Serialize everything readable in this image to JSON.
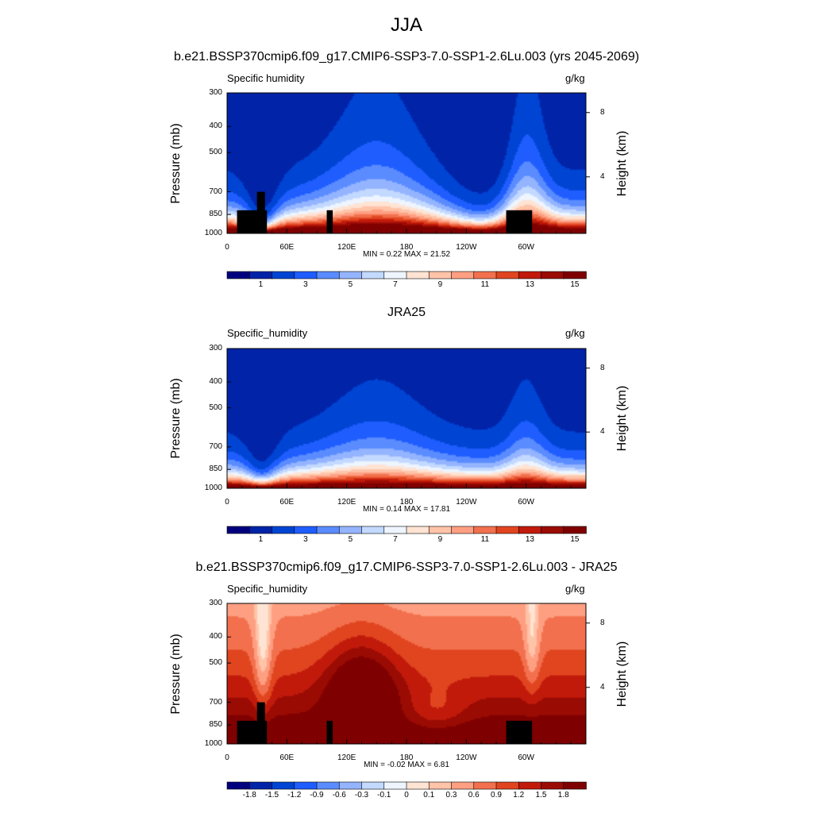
{
  "figure": {
    "title": "JJA",
    "panels": [
      {
        "title": "b.e21.BSSP370cmip6.f09_g17.CMIP6-SSP3-7.0-SSP1-2.6Lu.003 (yrs 2045-2069)",
        "variable_label": "Specific humidity",
        "units": "g/kg",
        "min_label": "MIN =",
        "min_value": "0.22",
        "max_label": "MAX =",
        "max_value": "21.52",
        "kind": "absolute",
        "show_topography": true
      },
      {
        "title": "JRA25",
        "variable_label": "Specific_humidity",
        "units": "g/kg",
        "min_label": "MIN =",
        "min_value": "0.14",
        "max_label": "MAX =",
        "max_value": "17.81",
        "kind": "absolute",
        "show_topography": false
      },
      {
        "title": "b.e21.BSSP370cmip6.f09_g17.CMIP6-SSP3-7.0-SSP1-2.6Lu.003 - JRA25",
        "variable_label": "Specific_humidity",
        "units": "g/kg",
        "min_label": "MIN =",
        "min_value": "-0.02",
        "max_label": "MAX =",
        "max_value": "6.81",
        "kind": "difference",
        "show_topography": true
      }
    ]
  },
  "chart_data": {
    "type": "heatmap",
    "x_axis": {
      "ticks": [
        "0",
        "60E",
        "120E",
        "180",
        "120W",
        "60W"
      ],
      "tick_lon": [
        0,
        60,
        120,
        180,
        240,
        300
      ],
      "range": [
        0,
        360
      ]
    },
    "y_axis": {
      "label": "Pressure (mb)",
      "ticks": [
        300,
        400,
        500,
        700,
        850,
        1000
      ],
      "range": [
        1000,
        300
      ],
      "scale": "log"
    },
    "y_axis_right": {
      "label": "Height (km)",
      "ticks": [
        8,
        4
      ]
    },
    "colorbar_absolute": {
      "labels": [
        "1",
        "3",
        "5",
        "7",
        "9",
        "11",
        "13",
        "15"
      ],
      "colors": [
        "#00007f",
        "#0023a8",
        "#0044d3",
        "#1f5dff",
        "#5a8cff",
        "#94b4ff",
        "#c3d9ff",
        "#eef5ff",
        "#ffe3d3",
        "#ffc3a8",
        "#ff9f82",
        "#f2704d",
        "#e0451f",
        "#c11a0b",
        "#9a0b04",
        "#7f0000"
      ]
    },
    "colorbar_difference": {
      "labels": [
        "-1.8",
        "-1.5",
        "-1.2",
        "-0.9",
        "-0.6",
        "-0.3",
        "-0.1",
        "0",
        "0.1",
        "0.3",
        "0.6",
        "0.9",
        "1.2",
        "1.5",
        "1.8"
      ],
      "colors": [
        "#00007f",
        "#0023a8",
        "#0044d3",
        "#1f5dff",
        "#5a8cff",
        "#94b4ff",
        "#c3d9ff",
        "#eef5ff",
        "#ffe3d3",
        "#ffc3a8",
        "#ff9f82",
        "#f2704d",
        "#e0451f",
        "#c11a0b",
        "#9a0b04",
        "#7f0000"
      ]
    },
    "series": [
      {
        "stats": {
          "min": 0.22,
          "max": 21.52
        }
      },
      {
        "stats": {
          "min": 0.14,
          "max": 17.81
        }
      },
      {
        "stats": {
          "min": -0.02,
          "max": 6.81
        }
      }
    ]
  }
}
